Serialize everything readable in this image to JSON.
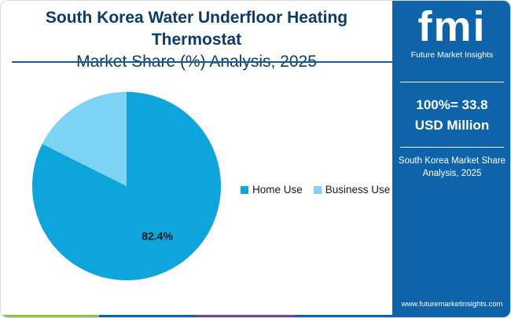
{
  "title": {
    "line1": "South Korea Water Underfloor Heating Thermostat",
    "line2": "Market Share (%) Analysis, 2025"
  },
  "chart_data": {
    "type": "pie",
    "categories": [
      "Home Use",
      "Business Use"
    ],
    "values": [
      82.4,
      17.6
    ],
    "labels": [
      "82.4%",
      ""
    ],
    "colors": [
      "#0ea5dc",
      "#7dd3f3"
    ],
    "legend": "right"
  },
  "sidebar": {
    "logo_text": "fmi",
    "logo_subtitle": "Future Market Insights",
    "total_line1": "100%= 33.8",
    "total_line2": "USD Million",
    "caption_line1": "South Korea Market Share",
    "caption_line2": "Analysis, 2025",
    "website": "www.futuremarketinsights.com",
    "background": "#0f63a8"
  },
  "bottom_bar_colors": [
    "#8bc34a",
    "#0f63a8",
    "#7b3fa0",
    "#0f63a8"
  ]
}
